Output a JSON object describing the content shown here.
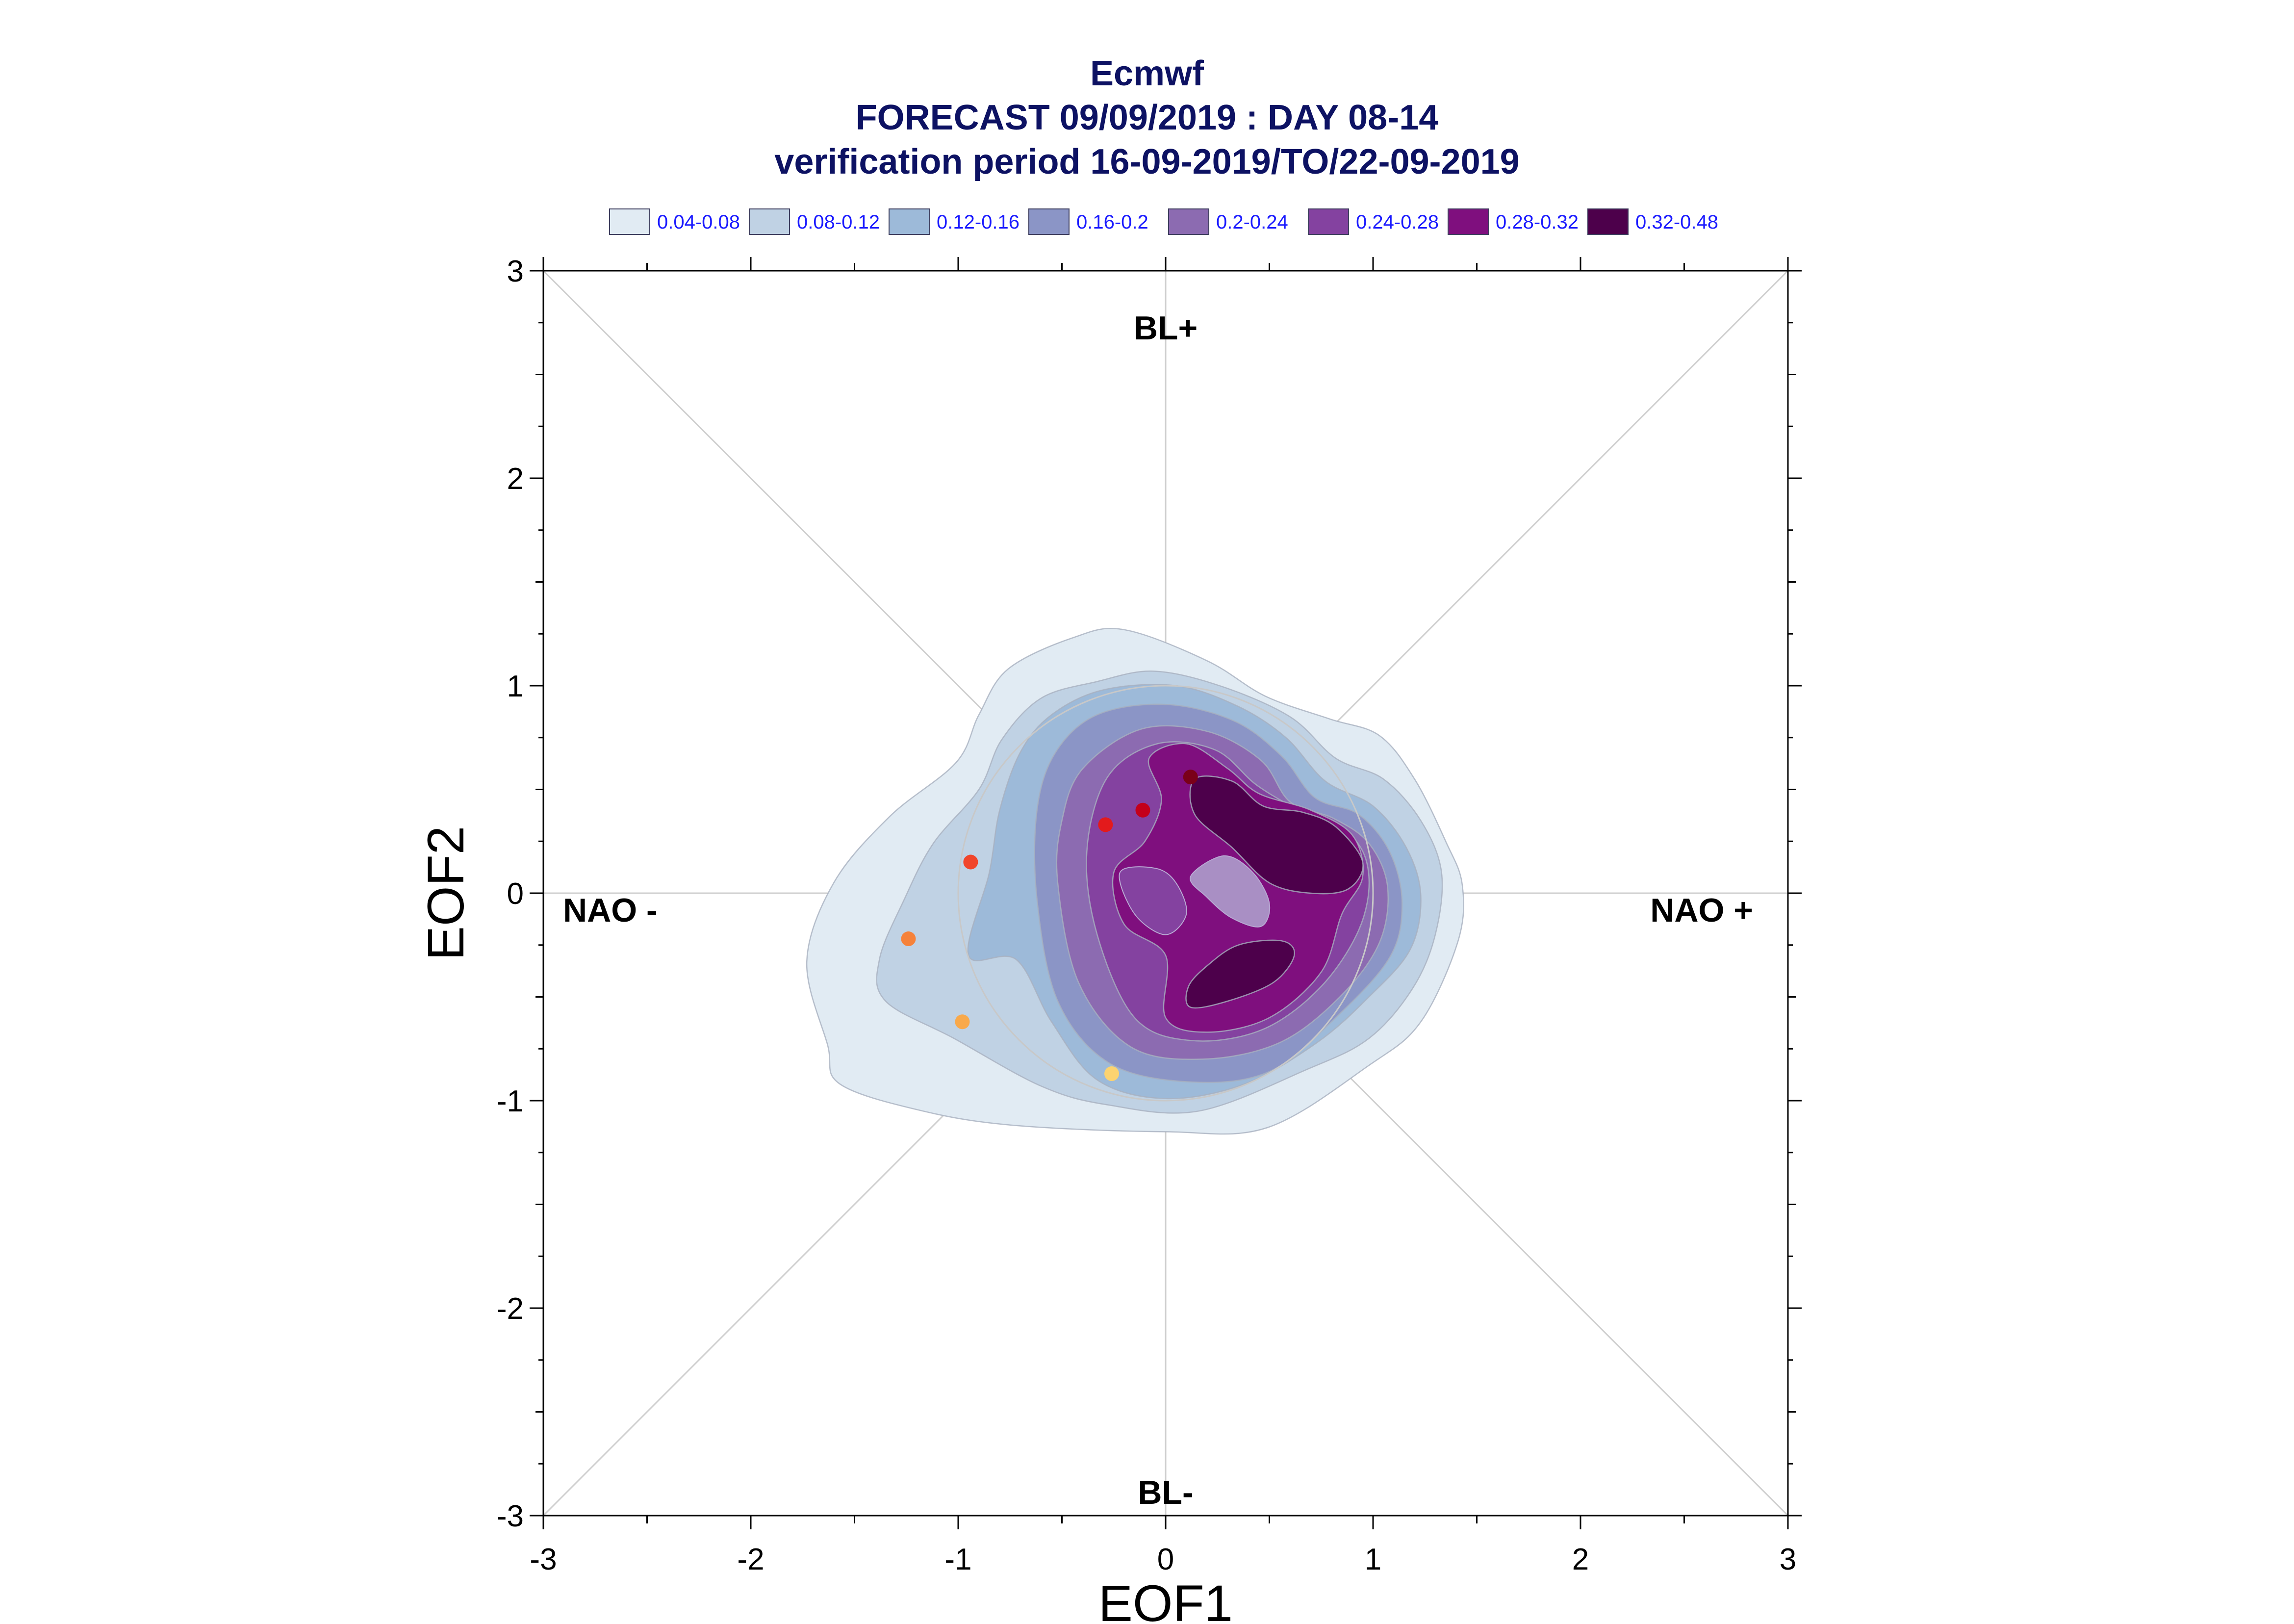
{
  "title": {
    "line1": "Ecmwf",
    "line2": "FORECAST 09/09/2019 : DAY 08-14",
    "line3": "verification period 16-09-2019/TO/22-09-2019"
  },
  "legend": [
    {
      "label": "0.04-0.08",
      "color": "#e1ebf3"
    },
    {
      "label": "0.08-0.12",
      "color": "#c0d2e4"
    },
    {
      "label": "0.12-0.16",
      "color": "#9dbad9"
    },
    {
      "label": "0.16-0.2",
      "color": "#8b95c6"
    },
    {
      "label": "0.2-0.24",
      "color": "#8c6bb1"
    },
    {
      "label": "0.24-0.28",
      "color": "#8442a0"
    },
    {
      "label": "0.28-0.32",
      "color": "#7f0f7e"
    },
    {
      "label": "0.32-0.48",
      "color": "#4d004b"
    }
  ],
  "chart_data": {
    "type": "scatter",
    "xlabel": "EOF1",
    "ylabel": "EOF2",
    "xlim": [
      -3,
      3
    ],
    "ylim": [
      -3,
      3
    ],
    "xticks": [
      "-3",
      "-2",
      "-1",
      "0",
      "1",
      "2",
      "3"
    ],
    "yticks": [
      "-3",
      "-2",
      "-1",
      "0",
      "1",
      "2",
      "3"
    ],
    "regime_labels": {
      "top": "BL+",
      "bottom": "BL-",
      "left": "NAO -",
      "right": "NAO +"
    },
    "grid": "diagonals and zero lines",
    "unit_circle_radius": 1,
    "points": [
      {
        "x": 0.12,
        "y": 0.56,
        "color": "#7a0019"
      },
      {
        "x": -0.11,
        "y": 0.4,
        "color": "#c4001b"
      },
      {
        "x": -0.29,
        "y": 0.33,
        "color": "#e31a1c"
      },
      {
        "x": -0.94,
        "y": 0.15,
        "color": "#f1452a"
      },
      {
        "x": -1.24,
        "y": -0.22,
        "color": "#f6823a"
      },
      {
        "x": -0.98,
        "y": -0.62,
        "color": "#f9a94a"
      },
      {
        "x": -0.26,
        "y": -0.87,
        "color": "#fcd370"
      }
    ],
    "density_levels": [
      {
        "range": "0.04-0.08",
        "color": "#e1ebf3",
        "polygons": [
          [
            [
              -1.63,
              -0.73
            ],
            [
              -1.57,
              -0.92
            ],
            [
              -1.17,
              -1.05
            ],
            [
              -0.72,
              -1.12
            ],
            [
              0.0,
              -1.15
            ],
            [
              0.49,
              -1.13
            ],
            [
              0.98,
              -0.83
            ],
            [
              1.23,
              -0.62
            ],
            [
              1.41,
              -0.23
            ],
            [
              1.43,
              0.04
            ],
            [
              1.35,
              0.25
            ],
            [
              1.2,
              0.55
            ],
            [
              1.03,
              0.76
            ],
            [
              0.79,
              0.84
            ],
            [
              0.48,
              0.95
            ],
            [
              0.2,
              1.12
            ],
            [
              -0.2,
              1.27
            ],
            [
              -0.45,
              1.23
            ],
            [
              -0.76,
              1.08
            ],
            [
              -0.9,
              0.86
            ],
            [
              -1.01,
              0.63
            ],
            [
              -1.33,
              0.37
            ],
            [
              -1.6,
              0.05
            ],
            [
              -1.73,
              -0.33
            ]
          ]
        ]
      },
      {
        "range": "0.08-0.12",
        "color": "#c0d2e4",
        "polygons": [
          [
            [
              -1.35,
              -0.52
            ],
            [
              -1.02,
              -0.7
            ],
            [
              -0.6,
              -0.93
            ],
            [
              -0.28,
              -1.02
            ],
            [
              0.16,
              -1.05
            ],
            [
              0.68,
              -0.85
            ],
            [
              0.98,
              -0.7
            ],
            [
              1.19,
              -0.46
            ],
            [
              1.3,
              -0.2
            ],
            [
              1.33,
              0.1
            ],
            [
              1.23,
              0.35
            ],
            [
              1.05,
              0.55
            ],
            [
              0.82,
              0.65
            ],
            [
              0.6,
              0.85
            ],
            [
              0.26,
              1.0
            ],
            [
              -0.06,
              1.07
            ],
            [
              -0.33,
              1.02
            ],
            [
              -0.6,
              0.94
            ],
            [
              -0.79,
              0.74
            ],
            [
              -0.9,
              0.5
            ],
            [
              -1.12,
              0.24
            ],
            [
              -1.26,
              -0.03
            ],
            [
              -1.38,
              -0.32
            ]
          ]
        ]
      },
      {
        "range": "0.12-0.16",
        "color": "#9dbad9",
        "polygons": [
          [
            [
              -0.95,
              -0.3
            ],
            [
              -0.72,
              -0.32
            ],
            [
              -0.55,
              -0.62
            ],
            [
              -0.33,
              -0.9
            ],
            [
              0.0,
              -0.99
            ],
            [
              0.38,
              -0.92
            ],
            [
              0.73,
              -0.72
            ],
            [
              0.98,
              -0.5
            ],
            [
              1.18,
              -0.27
            ],
            [
              1.23,
              -0.01
            ],
            [
              1.16,
              0.22
            ],
            [
              1.0,
              0.42
            ],
            [
              0.77,
              0.54
            ],
            [
              0.58,
              0.75
            ],
            [
              0.35,
              0.9
            ],
            [
              0.05,
              1.0
            ],
            [
              -0.3,
              0.98
            ],
            [
              -0.55,
              0.86
            ],
            [
              -0.7,
              0.68
            ],
            [
              -0.8,
              0.4
            ],
            [
              -0.85,
              0.1
            ]
          ]
        ]
      },
      {
        "range": "0.16-0.2",
        "color": "#8b95c6",
        "polygons": [
          [
            [
              -0.62,
              -0.03
            ],
            [
              -0.52,
              -0.52
            ],
            [
              -0.27,
              -0.82
            ],
            [
              0.12,
              -0.91
            ],
            [
              0.5,
              -0.86
            ],
            [
              0.82,
              -0.6
            ],
            [
              1.08,
              -0.31
            ],
            [
              1.14,
              -0.05
            ],
            [
              1.08,
              0.2
            ],
            [
              0.93,
              0.38
            ],
            [
              0.72,
              0.46
            ],
            [
              0.56,
              0.66
            ],
            [
              0.33,
              0.83
            ],
            [
              0.0,
              0.91
            ],
            [
              -0.33,
              0.86
            ],
            [
              -0.53,
              0.68
            ],
            [
              -0.62,
              0.4
            ]
          ]
        ]
      },
      {
        "range": "0.2-0.24",
        "color": "#8c6bb1",
        "polygons": [
          [
            [
              -0.52,
              0.05
            ],
            [
              -0.42,
              -0.43
            ],
            [
              -0.17,
              -0.74
            ],
            [
              0.18,
              -0.8
            ],
            [
              0.55,
              -0.72
            ],
            [
              0.84,
              -0.5
            ],
            [
              1.03,
              -0.24
            ],
            [
              1.07,
              0.03
            ],
            [
              0.98,
              0.24
            ],
            [
              0.81,
              0.36
            ],
            [
              0.6,
              0.44
            ],
            [
              0.46,
              0.64
            ],
            [
              0.2,
              0.78
            ],
            [
              -0.12,
              0.79
            ],
            [
              -0.4,
              0.6
            ],
            [
              -0.5,
              0.35
            ]
          ]
        ]
      },
      {
        "range": "0.24-0.28",
        "color": "#8442a0",
        "polygons": [
          [
            [
              -0.38,
              0.2
            ],
            [
              -0.33,
              -0.2
            ],
            [
              -0.15,
              -0.6
            ],
            [
              0.12,
              -0.71
            ],
            [
              0.46,
              -0.66
            ],
            [
              0.74,
              -0.46
            ],
            [
              0.93,
              -0.18
            ],
            [
              0.98,
              0.08
            ],
            [
              0.9,
              0.27
            ],
            [
              0.66,
              0.39
            ],
            [
              0.44,
              0.52
            ],
            [
              0.24,
              0.69
            ],
            [
              -0.04,
              0.72
            ],
            [
              -0.28,
              0.56
            ]
          ]
        ]
      },
      {
        "range": "0.28-0.32",
        "color": "#7f0f7e",
        "polygons": [
          [
            [
              -0.08,
              0.65
            ],
            [
              -0.02,
              0.45
            ],
            [
              -0.1,
              0.25
            ],
            [
              -0.25,
              0.1
            ],
            [
              -0.2,
              -0.15
            ],
            [
              0.0,
              -0.3
            ],
            [
              0.0,
              -0.6
            ],
            [
              0.2,
              -0.67
            ],
            [
              0.5,
              -0.6
            ],
            [
              0.75,
              -0.38
            ],
            [
              0.85,
              -0.1
            ],
            [
              0.95,
              0.08
            ],
            [
              0.9,
              0.28
            ],
            [
              0.7,
              0.4
            ],
            [
              0.45,
              0.48
            ],
            [
              0.3,
              0.6
            ],
            [
              0.1,
              0.72
            ]
          ]
        ]
      },
      {
        "range": "0.32-0.48",
        "color": "#4d004b",
        "polygons": [
          [
            [
              0.14,
              0.55
            ],
            [
              0.32,
              0.54
            ],
            [
              0.47,
              0.42
            ],
            [
              0.66,
              0.39
            ],
            [
              0.82,
              0.32
            ],
            [
              0.95,
              0.15
            ],
            [
              0.88,
              0.02
            ],
            [
              0.7,
              0.0
            ],
            [
              0.5,
              0.05
            ],
            [
              0.32,
              0.22
            ],
            [
              0.14,
              0.38
            ]
          ],
          [
            [
              0.12,
              -0.55
            ],
            [
              0.3,
              -0.52
            ],
            [
              0.52,
              -0.43
            ],
            [
              0.62,
              -0.3
            ],
            [
              0.56,
              -0.23
            ],
            [
              0.35,
              -0.25
            ],
            [
              0.2,
              -0.35
            ],
            [
              0.11,
              -0.45
            ]
          ]
        ]
      }
    ],
    "inner_patch": {
      "color": "#a98fc4",
      "polygon": [
        [
          0.12,
          0.08
        ],
        [
          0.28,
          0.18
        ],
        [
          0.42,
          0.1
        ],
        [
          0.5,
          -0.05
        ],
        [
          0.46,
          -0.16
        ],
        [
          0.32,
          -0.12
        ],
        [
          0.2,
          -0.02
        ]
      ]
    },
    "inner_patch_2": {
      "color": "#8442a0",
      "polygon": [
        [
          -0.22,
          0.1
        ],
        [
          -0.15,
          -0.1
        ],
        [
          0.0,
          -0.2
        ],
        [
          0.1,
          -0.1
        ],
        [
          0.05,
          0.05
        ],
        [
          -0.05,
          0.12
        ]
      ]
    }
  }
}
